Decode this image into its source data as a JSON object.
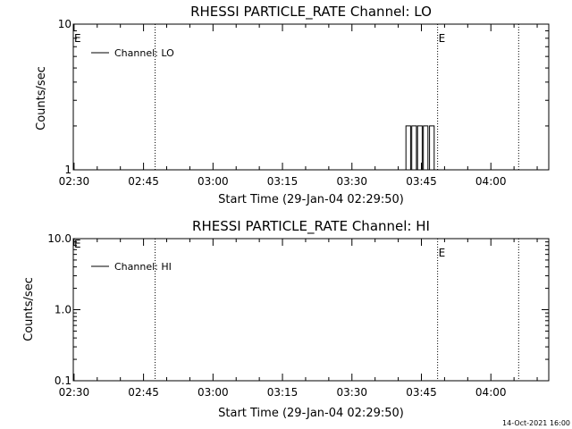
{
  "footer": {
    "timestamp": "14-Oct-2021 16:00"
  },
  "chart_data": [
    {
      "type": "line",
      "title": "RHESSI PARTICLE_RATE Channel: LO",
      "xlabel": "Start Time (29-Jan-04 02:29:50)",
      "ylabel": "Counts/sec",
      "y_scale": "log",
      "ylim": [
        1,
        10
      ],
      "y_ticks": [
        {
          "value": 1,
          "label": "1"
        },
        {
          "value": 10,
          "label": "10"
        }
      ],
      "y_minor_ticks": [
        2,
        3,
        4,
        5,
        6,
        7,
        8,
        9
      ],
      "xlim": [
        "02:29:50",
        "04:12:30"
      ],
      "x_ticks": [
        {
          "value": "02:30",
          "label": "02:30"
        },
        {
          "value": "02:45",
          "label": "02:45"
        },
        {
          "value": "03:00",
          "label": "03:00"
        },
        {
          "value": "03:15",
          "label": "03:15"
        },
        {
          "value": "03:30",
          "label": "03:30"
        },
        {
          "value": "03:45",
          "label": "03:45"
        },
        {
          "value": "04:00",
          "label": "04:00"
        }
      ],
      "event_lines": [
        {
          "time": "02:47:30",
          "label": ""
        },
        {
          "time": "03:48:30",
          "label": "E"
        },
        {
          "time": "04:06:00",
          "label": ""
        }
      ],
      "left_marker": "E",
      "legend": {
        "placement": "top-left",
        "label": "Channel: LO"
      },
      "series": [
        {
          "name": "Channel: LO",
          "x": [
            "03:41:30",
            "03:41:40",
            "03:41:40",
            "03:42:40",
            "03:42:40",
            "03:42:55",
            "03:42:55",
            "03:43:55",
            "03:43:55",
            "03:44:10",
            "03:44:10",
            "03:45:10",
            "03:45:10",
            "03:45:25",
            "03:45:25",
            "03:46:25",
            "03:46:25",
            "03:46:45",
            "03:46:45",
            "03:47:45",
            "03:47:45"
          ],
          "y": [
            1,
            1,
            2,
            2,
            1,
            1,
            2,
            2,
            1,
            1,
            2,
            2,
            1,
            1,
            2,
            2,
            1,
            1,
            2,
            2,
            1
          ]
        }
      ]
    },
    {
      "type": "line",
      "title": "RHESSI PARTICLE_RATE Channel: HI",
      "xlabel": "Start Time (29-Jan-04 02:29:50)",
      "ylabel": "Counts/sec",
      "y_scale": "log",
      "ylim": [
        0.1,
        10
      ],
      "y_ticks": [
        {
          "value": 0.1,
          "label": "0.1"
        },
        {
          "value": 1,
          "label": "1.0"
        },
        {
          "value": 10,
          "label": "10.0"
        }
      ],
      "y_minor_ticks": [
        0.2,
        0.3,
        0.4,
        0.5,
        0.6,
        0.7,
        0.8,
        0.9,
        2,
        3,
        4,
        5,
        6,
        7,
        8,
        9
      ],
      "xlim": [
        "02:29:50",
        "04:12:30"
      ],
      "x_ticks": [
        {
          "value": "02:30",
          "label": "02:30"
        },
        {
          "value": "02:45",
          "label": "02:45"
        },
        {
          "value": "03:00",
          "label": "03:00"
        },
        {
          "value": "03:15",
          "label": "03:15"
        },
        {
          "value": "03:30",
          "label": "03:30"
        },
        {
          "value": "03:45",
          "label": "03:45"
        },
        {
          "value": "04:00",
          "label": "04:00"
        }
      ],
      "event_lines": [
        {
          "time": "02:47:30",
          "label": ""
        },
        {
          "time": "03:48:30",
          "label": "E"
        },
        {
          "time": "04:06:00",
          "label": ""
        }
      ],
      "left_marker": "E",
      "legend": {
        "placement": "top-left",
        "label": "Channel: HI"
      },
      "series": [
        {
          "name": "Channel: HI",
          "x": [],
          "y": []
        }
      ]
    }
  ]
}
